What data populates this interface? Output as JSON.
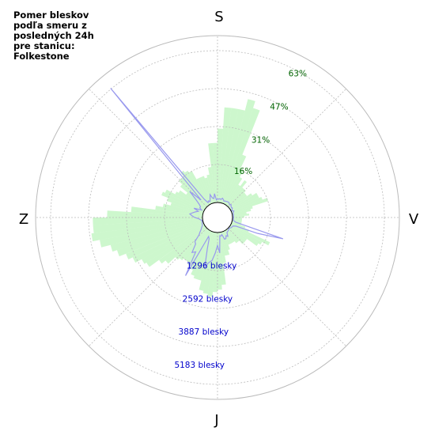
{
  "title": "Pomer bleskov\npodľa smeru z\nposledných 24h\npre stanicu:\nFolkestone",
  "chart_data": {
    "type": "polar",
    "compass": {
      "north": "S",
      "east": "V",
      "south": "J",
      "west": "Z"
    },
    "percent_ticks": [
      {
        "value": 16,
        "label": "16%"
      },
      {
        "value": 31,
        "label": "31%"
      },
      {
        "value": 47,
        "label": "47%"
      },
      {
        "value": 63,
        "label": "63%"
      }
    ],
    "count_ticks": [
      {
        "value": 1296,
        "label": "1296 blesky"
      },
      {
        "value": 2592,
        "label": "2592 blesky"
      },
      {
        "value": 3887,
        "label": "3887 blesky"
      },
      {
        "value": 5183,
        "label": "5183 blesky"
      }
    ],
    "percent_max": 70,
    "count_max": 6500,
    "bars_percent": [
      31,
      40,
      40,
      40,
      45,
      42,
      22,
      16,
      13,
      10,
      13,
      10,
      10,
      9,
      9,
      11,
      13,
      13,
      14,
      16,
      9,
      8,
      6,
      7,
      5,
      4,
      4,
      4,
      4,
      4,
      6,
      8,
      18,
      15,
      14,
      9,
      9,
      9,
      7,
      7,
      6,
      6,
      6,
      6,
      8,
      10,
      10,
      13,
      22,
      24,
      25,
      27,
      26,
      25,
      21,
      21,
      20,
      18,
      17,
      16,
      16,
      17,
      18,
      22,
      24,
      29,
      30,
      33,
      35,
      38,
      40,
      44,
      47,
      46,
      46,
      40,
      30,
      20,
      17,
      14,
      16,
      19,
      18,
      14,
      13,
      10,
      14,
      16,
      16,
      18,
      17,
      16,
      12,
      12,
      12,
      11,
      12,
      15,
      25,
      25
    ],
    "line_counts": [
      140,
      130,
      150,
      130,
      190,
      150,
      100,
      120,
      130,
      140,
      150,
      130,
      100,
      140,
      100,
      80,
      100,
      60,
      30,
      100,
      60,
      40,
      50,
      40,
      40,
      40,
      30,
      40,
      50,
      150,
      2100,
      1100,
      200,
      100,
      90,
      80,
      50,
      30,
      60,
      70,
      90,
      100,
      250,
      200,
      300,
      300,
      100,
      150,
      130,
      800,
      500,
      800,
      1100,
      1200,
      1400,
      700,
      300,
      230,
      2000,
      1000,
      1100,
      750,
      700,
      400,
      300,
      200,
      150,
      90,
      70,
      60,
      40,
      40,
      30,
      90,
      150,
      300,
      400,
      500,
      400,
      300,
      200,
      400,
      100,
      200,
      200,
      300,
      500,
      900,
      350,
      5950,
      300,
      100,
      150,
      100,
      200,
      350,
      200,
      170,
      350,
      100
    ]
  },
  "colors": {
    "bars": "#90ee90",
    "line": "#9999ee",
    "grid": "#bbbbbb"
  }
}
